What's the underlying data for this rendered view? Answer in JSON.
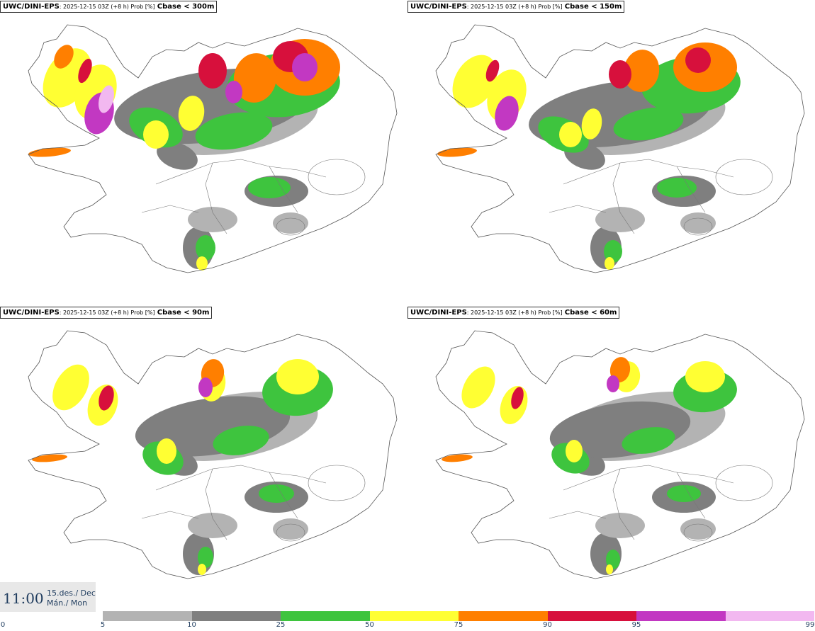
{
  "title": {
    "model": "UWC/DINI-EPS",
    "meta": ": 2025-12-15 03Z (+8 h) Prob [%]"
  },
  "panels": [
    {
      "variable": "Cbase < 300m"
    },
    {
      "variable": "Cbase < 150m"
    },
    {
      "variable": "Cbase < 90m"
    },
    {
      "variable": "Cbase < 60m"
    }
  ],
  "valid_time": {
    "time": "11:00",
    "date_line1": "15.des./ Dec",
    "date_line2": "Mán./ Mon"
  },
  "legend": {
    "levels": [
      "0",
      "5",
      "10",
      "25",
      "50",
      "75",
      "90",
      "95",
      "99"
    ],
    "colors": [
      "#b3b3b3",
      "#7f7f7f",
      "#3ec43e",
      "#ffff33",
      "#ff7f00",
      "#d7103c",
      "#c238c2",
      "#f2b8f0"
    ]
  }
}
